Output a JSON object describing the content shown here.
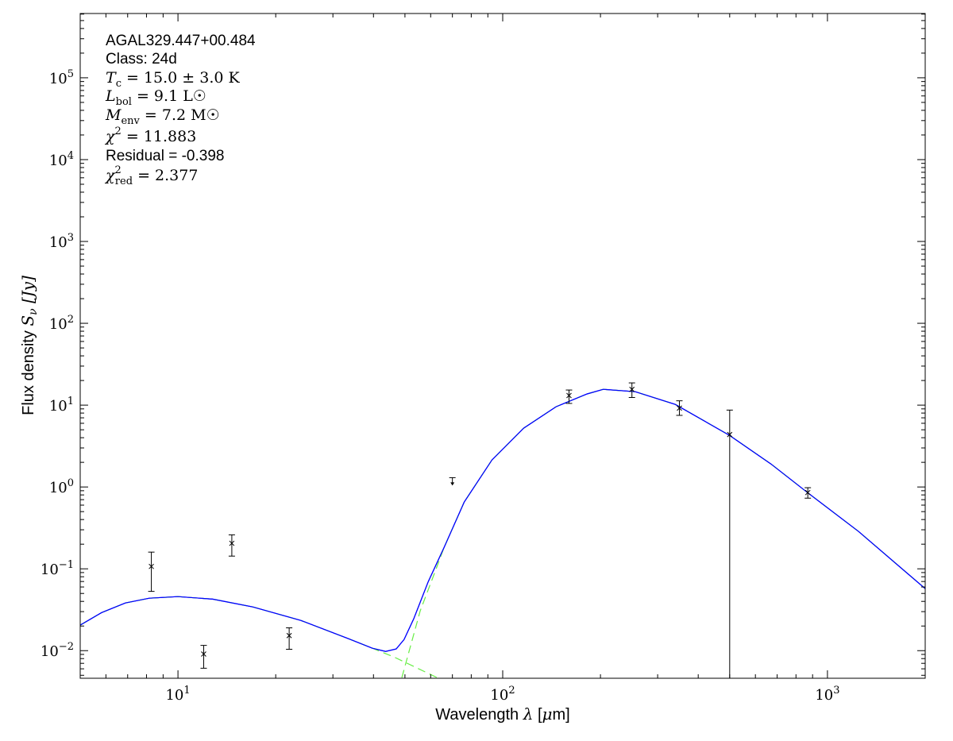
{
  "chart_data": {
    "type": "scatter",
    "xscale": "log",
    "yscale": "log",
    "xlim": [
      5,
      2000
    ],
    "ylim": [
      0.0046,
      610000
    ],
    "xlabel": {
      "main": "Wavelength ",
      "sym": "λ",
      "unit_open": " [",
      "unit_sym": "μ",
      "unit_rest": "m]"
    },
    "ylabel": {
      "main": "Flux density ",
      "sym": "S",
      "sub": "ν",
      "unit": " [Jy]"
    },
    "x_ticks": [
      {
        "base": "10",
        "exp": "1",
        "value": 10
      },
      {
        "base": "10",
        "exp": "2",
        "value": 100
      },
      {
        "base": "10",
        "exp": "3",
        "value": 1000
      }
    ],
    "y_ticks": [
      {
        "base": "10",
        "exp": "−2",
        "value": 0.01
      },
      {
        "base": "10",
        "exp": "−1",
        "value": 0.1
      },
      {
        "base": "10",
        "exp": "0",
        "value": 1
      },
      {
        "base": "10",
        "exp": "1",
        "value": 10
      },
      {
        "base": "10",
        "exp": "2",
        "value": 100
      },
      {
        "base": "10",
        "exp": "3",
        "value": 1000
      },
      {
        "base": "10",
        "exp": "4",
        "value": 10000
      },
      {
        "base": "10",
        "exp": "5",
        "value": 100000
      }
    ],
    "grid": false,
    "annotations": [
      {
        "style": "sans",
        "text": "AGAL329.447+00.484"
      },
      {
        "style": "sans",
        "text": "Class: 24d"
      },
      {
        "style": "math",
        "sym": "T",
        "sub": "c",
        "sup": "",
        "rest": " = 15.0 ± 3.0 K"
      },
      {
        "style": "math",
        "sym": "L",
        "sub": "bol",
        "sup": "",
        "rest": " = 9.1 L☉"
      },
      {
        "style": "math",
        "sym": "M",
        "sub": "env",
        "sup": "",
        "rest": " = 7.2 M☉"
      },
      {
        "style": "math",
        "sym": "χ",
        "sub": "",
        "sup": "2",
        "rest": " = 11.883"
      },
      {
        "style": "sans",
        "text": "Residual = -0.398"
      },
      {
        "style": "math",
        "sym": "χ",
        "sub": "red",
        "sup": "2",
        "rest": " = 2.377"
      }
    ],
    "colors": {
      "total_model": "#0000ff",
      "components": "#66ee44",
      "data": "#000000"
    },
    "data_points": [
      {
        "x": 8.28,
        "y": 0.107,
        "yerr_low": 0.053,
        "yerr_high": 0.16
      },
      {
        "x": 12,
        "y": 0.0091,
        "yerr_low": 0.0061,
        "yerr_high": 0.0116
      },
      {
        "x": 14.65,
        "y": 0.205,
        "yerr_low": 0.143,
        "yerr_high": 0.26
      },
      {
        "x": 22,
        "y": 0.0153,
        "yerr_low": 0.0104,
        "yerr_high": 0.019
      },
      {
        "x": 160,
        "y": 13.1,
        "yerr_low": 10.5,
        "yerr_high": 15.3
      },
      {
        "x": 250,
        "y": 15.6,
        "yerr_low": 12.4,
        "yerr_high": 18.7
      },
      {
        "x": 350,
        "y": 9.2,
        "yerr_low": 7.5,
        "yerr_high": 11.3
      },
      {
        "x": 500,
        "y": 4.37,
        "yerr_low": 0.0001,
        "yerr_high": 8.7
      },
      {
        "x": 870,
        "y": 0.855,
        "yerr_low": 0.73,
        "yerr_high": 0.98
      }
    ],
    "upper_limits": [
      {
        "x": 70,
        "y": 1.3
      }
    ],
    "series": [
      {
        "role": "total",
        "style": "solid",
        "points": [
          [
            5,
            0.0205
          ],
          [
            5.82,
            0.0292
          ],
          [
            6.89,
            0.0383
          ],
          [
            8.16,
            0.0437
          ],
          [
            10,
            0.0457
          ],
          [
            12.8,
            0.0426
          ],
          [
            17,
            0.0342
          ],
          [
            23.9,
            0.0234
          ],
          [
            33.5,
            0.014
          ],
          [
            39.7,
            0.0107
          ],
          [
            43.6,
            0.0098
          ],
          [
            47,
            0.0105
          ],
          [
            49.7,
            0.0137
          ],
          [
            53.2,
            0.0244
          ],
          [
            59,
            0.07
          ],
          [
            66,
            0.183
          ],
          [
            76.1,
            0.654
          ],
          [
            92.7,
            2.14
          ],
          [
            116,
            5.23
          ],
          [
            146,
            9.56
          ],
          [
            182,
            13.7
          ],
          [
            204,
            15.6
          ],
          [
            256,
            14.6
          ],
          [
            340,
            10.2
          ],
          [
            499,
            4.28
          ],
          [
            670,
            1.91
          ],
          [
            868,
            0.855
          ],
          [
            1247,
            0.286
          ],
          [
            2014,
            0.0572
          ]
        ]
      },
      {
        "role": "warm-component",
        "style": "dashed",
        "points": [
          [
            5,
            0.0205
          ],
          [
            5.82,
            0.0292
          ],
          [
            6.89,
            0.0383
          ],
          [
            8.16,
            0.0437
          ],
          [
            10,
            0.0457
          ],
          [
            12.8,
            0.0426
          ],
          [
            17,
            0.0342
          ],
          [
            23.9,
            0.0234
          ],
          [
            33.5,
            0.014
          ],
          [
            39.7,
            0.0107
          ],
          [
            46.3,
            0.00836
          ],
          [
            63.4,
            0.00459
          ]
        ]
      },
      {
        "role": "cold-component",
        "style": "dashed",
        "points": [
          [
            48.9,
            0.00468
          ],
          [
            55.7,
            0.0306
          ],
          [
            62.4,
            0.1
          ],
          [
            66,
            0.183
          ],
          [
            76.1,
            0.654
          ],
          [
            92.7,
            2.14
          ],
          [
            116,
            5.23
          ],
          [
            146,
            9.56
          ],
          [
            182,
            13.7
          ],
          [
            204,
            15.6
          ],
          [
            256,
            14.6
          ],
          [
            340,
            10.2
          ],
          [
            499,
            4.28
          ],
          [
            670,
            1.91
          ],
          [
            868,
            0.855
          ],
          [
            1247,
            0.286
          ],
          [
            2014,
            0.0572
          ]
        ]
      }
    ]
  }
}
